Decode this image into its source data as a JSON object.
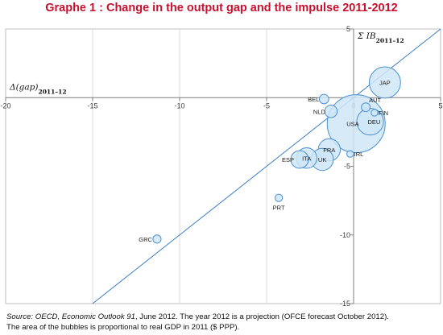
{
  "title": "Graphe 1 : Change in the output gap and the impulse 2011-2012",
  "colors": {
    "title": "#c8102e",
    "line": "#3b7dc4",
    "bubble_fill": "#cfe6f7",
    "bubble_stroke": "#4a90d0",
    "axis": "#7f7f7f",
    "grid": "#d9d9d9"
  },
  "source": {
    "lead_italic": "Source: OECD, Economic Outlook 91",
    "line1_rest": ", June 2012. The year 2012 is a projection (OFCE forecast October 2012).",
    "line2": "The area of the bubbles is proportional to real GDP in 2011 ($ PPP)."
  },
  "chart_data": {
    "type": "bubble",
    "title": "Graphe 1 : Change in the output gap and the impulse 2011-2012",
    "xlabel": "Δ(gap)2011–12",
    "ylabel": "Σ IB2011–12",
    "xlim": [
      -20,
      5
    ],
    "ylim": [
      -15,
      5
    ],
    "x_ticks": [
      -20,
      -15,
      -10,
      -5,
      0,
      5
    ],
    "y_ticks": [
      -15,
      -10,
      -5,
      0,
      5
    ],
    "grid": "vertical",
    "reference_line": "y = x",
    "bubble_size": "real GDP in 2011 ($ PPP)",
    "points": [
      {
        "label": "JAP",
        "x": 1.8,
        "y": 1.1,
        "size": 4.4
      },
      {
        "label": "BEL",
        "x": -1.7,
        "y": -0.1,
        "size": 0.4
      },
      {
        "label": "AUT",
        "x": 0.7,
        "y": -0.7,
        "size": 0.35
      },
      {
        "label": "NLD",
        "x": -1.3,
        "y": -1.0,
        "size": 0.7
      },
      {
        "label": "FIN",
        "x": 1.2,
        "y": -1.1,
        "size": 0.2
      },
      {
        "label": "USA",
        "x": 0.15,
        "y": -1.9,
        "size": 15.1
      },
      {
        "label": "DEU",
        "x": 0.95,
        "y": -1.75,
        "size": 3.2
      },
      {
        "label": "FRA",
        "x": -1.4,
        "y": -3.8,
        "size": 2.2
      },
      {
        "label": "IRL",
        "x": -0.2,
        "y": -4.1,
        "size": 0.2
      },
      {
        "label": "ESP",
        "x": -3.1,
        "y": -4.5,
        "size": 1.4
      },
      {
        "label": "ITA",
        "x": -2.7,
        "y": -4.4,
        "size": 1.9
      },
      {
        "label": "UK",
        "x": -1.8,
        "y": -4.5,
        "size": 2.2
      },
      {
        "label": "PRT",
        "x": -4.3,
        "y": -7.3,
        "size": 0.25
      },
      {
        "label": "GRC",
        "x": -11.3,
        "y": -10.3,
        "size": 0.3
      }
    ]
  }
}
